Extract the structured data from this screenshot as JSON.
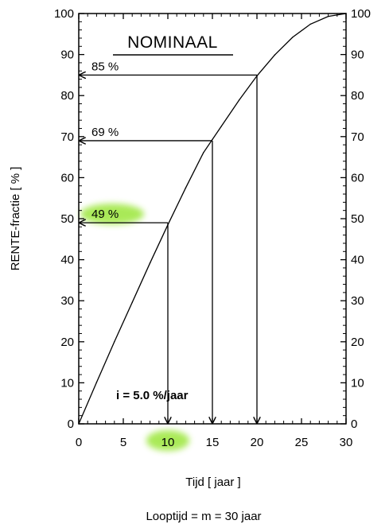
{
  "chart_data": {
    "type": "line",
    "title": "NOMINAAL",
    "xlabel": "Tijd [ jaar ]",
    "ylabel": "RENTE-fractie [ % ]",
    "footer": "Looptijd = m = 30 jaar",
    "annotation": "i = 5.0 %/jaar",
    "xlim": [
      0,
      30
    ],
    "ylim": [
      0,
      100
    ],
    "x_ticks": [
      0,
      5,
      10,
      15,
      20,
      25,
      30
    ],
    "y_ticks": [
      0,
      10,
      20,
      30,
      40,
      50,
      60,
      70,
      80,
      90,
      100
    ],
    "grid": false,
    "series": [
      {
        "x": [
          0,
          2,
          4,
          6,
          8,
          10,
          12,
          14,
          15,
          16,
          18,
          20,
          22,
          24,
          26,
          28,
          30
        ],
        "y": [
          0,
          10.1,
          20.0,
          29.6,
          39.2,
          48.5,
          57.5,
          66.1,
          69.3,
          72.5,
          78.9,
          84.8,
          89.9,
          94.2,
          97.4,
          99.3,
          100
        ]
      }
    ],
    "readouts": [
      {
        "x": 10,
        "y": 49,
        "label": "49 %",
        "highlighted": true
      },
      {
        "x": 15,
        "y": 69,
        "label": "69 %",
        "highlighted": false
      },
      {
        "x": 20,
        "y": 85,
        "label": "85 %",
        "highlighted": false
      }
    ],
    "highlighted_x_tick": 10,
    "highlight_color": "#9be63a"
  }
}
